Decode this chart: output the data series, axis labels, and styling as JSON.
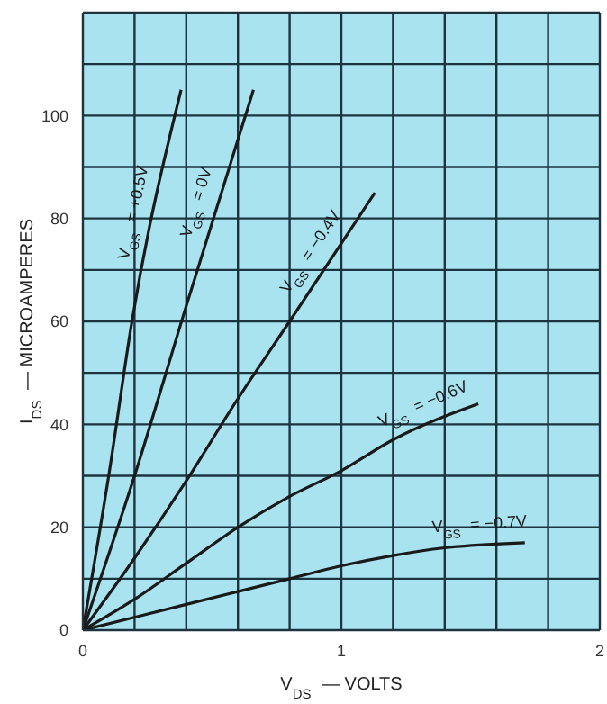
{
  "chart_data": {
    "type": "line",
    "xlabel": "V$_{DS}$ — VOLTS",
    "ylabel": "I$_{DS}$ — MICROAMPERES",
    "xlim": [
      0,
      2
    ],
    "ylim": [
      0,
      120
    ],
    "xticks": [
      0,
      {
        "value": 0.2,
        "label": null
      },
      {
        "value": 0.4,
        "label": null
      },
      {
        "value": 0.6,
        "label": null
      },
      {
        "value": 0.8,
        "label": null
      },
      1,
      {
        "value": 1.2,
        "label": null
      },
      {
        "value": 1.4,
        "label": null
      },
      {
        "value": 1.6,
        "label": null
      },
      {
        "value": 1.8,
        "label": null
      },
      2
    ],
    "yticks": [
      0,
      {
        "value": 10,
        "label": null
      },
      20,
      {
        "value": 30,
        "label": null
      },
      40,
      {
        "value": 50,
        "label": null
      },
      60,
      {
        "value": 70,
        "label": null
      },
      80,
      {
        "value": 90,
        "label": null
      },
      100,
      {
        "value": 110,
        "label": null
      },
      {
        "value": 120,
        "label": null
      }
    ],
    "grid": true,
    "legend": false,
    "marker": "none",
    "line_style": "solid",
    "series": [
      {
        "name": "V$_{GS}$ = +0.5V",
        "color": "#1a1a1a",
        "x": [
          0,
          0.1,
          0.19,
          0.38
        ],
        "values": [
          0,
          30,
          60,
          105
        ]
      },
      {
        "name": "V$_{GS}$ = 0V",
        "color": "#1a1a1a",
        "x": [
          0,
          0.2,
          0.4,
          0.66
        ],
        "values": [
          0,
          30,
          63,
          105
        ]
      },
      {
        "name": "V$_{GS}$ = −0.4V",
        "color": "#1a1a1a",
        "x": [
          0,
          0.2,
          0.4,
          0.6,
          0.8,
          1.13
        ],
        "values": [
          0,
          14,
          29,
          45,
          60,
          85
        ]
      },
      {
        "name": "V$_{GS}$ = −0.6V",
        "color": "#1a1a1a",
        "x": [
          0,
          0.2,
          0.4,
          0.6,
          0.8,
          1,
          1.2,
          1.53
        ],
        "values": [
          0,
          6,
          13,
          20,
          26,
          31,
          37,
          44
        ]
      },
      {
        "name": "V$_{GS}$ = −0.7V",
        "color": "#1a1a1a",
        "x": [
          0,
          0.4,
          0.8,
          1,
          1.2,
          1.4,
          1.71
        ],
        "values": [
          0,
          5,
          10,
          12.5,
          14.5,
          16,
          17
        ]
      }
    ]
  }
}
